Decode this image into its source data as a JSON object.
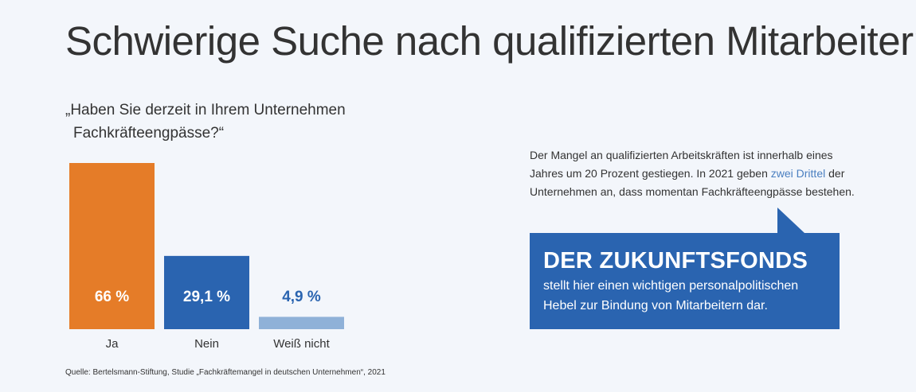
{
  "title": "Schwierige Suche nach qualifizierten Mitarbeitern!",
  "question": {
    "line1": "„Haben Sie derzeit in Ihrem Unternehmen",
    "line2": "Fachkräfteengpässe?“"
  },
  "chart_data": {
    "type": "bar",
    "categories": [
      "Ja",
      "Nein",
      "Weiß nicht"
    ],
    "values": [
      66,
      29.1,
      4.9
    ],
    "value_labels": [
      "66 %",
      "29,1 %",
      "4,9 %"
    ],
    "unit": "%",
    "ylim": [
      0,
      66
    ],
    "colors": [
      "#e57c28",
      "#2a64b0",
      "#8fb1d8"
    ],
    "label_colors": [
      "#ffffff",
      "#ffffff",
      "#2a64b0"
    ]
  },
  "info": {
    "part1": "Der Mangel an qualifizierten Arbeitskräften ist innerhalb eines Jahres um 20 Prozent gestiegen. In 2021 geben ",
    "highlight": "zwei Drittel",
    "part2": " der Unternehmen an, dass momentan Fachkräfteengpässe bestehen.",
    "highlight_color": "#4a7fc0"
  },
  "callout": {
    "headline": "DER ZUKUNFTSFONDS",
    "body": "stellt hier einen wichtigen personalpolitischen Hebel zur Bindung von Mitarbeitern dar.",
    "background": "#2a64b0"
  },
  "source": "Quelle: Bertelsmann-Stiftung, Studie „Fachkräftemangel in deutschen Unternehmen“, 2021"
}
